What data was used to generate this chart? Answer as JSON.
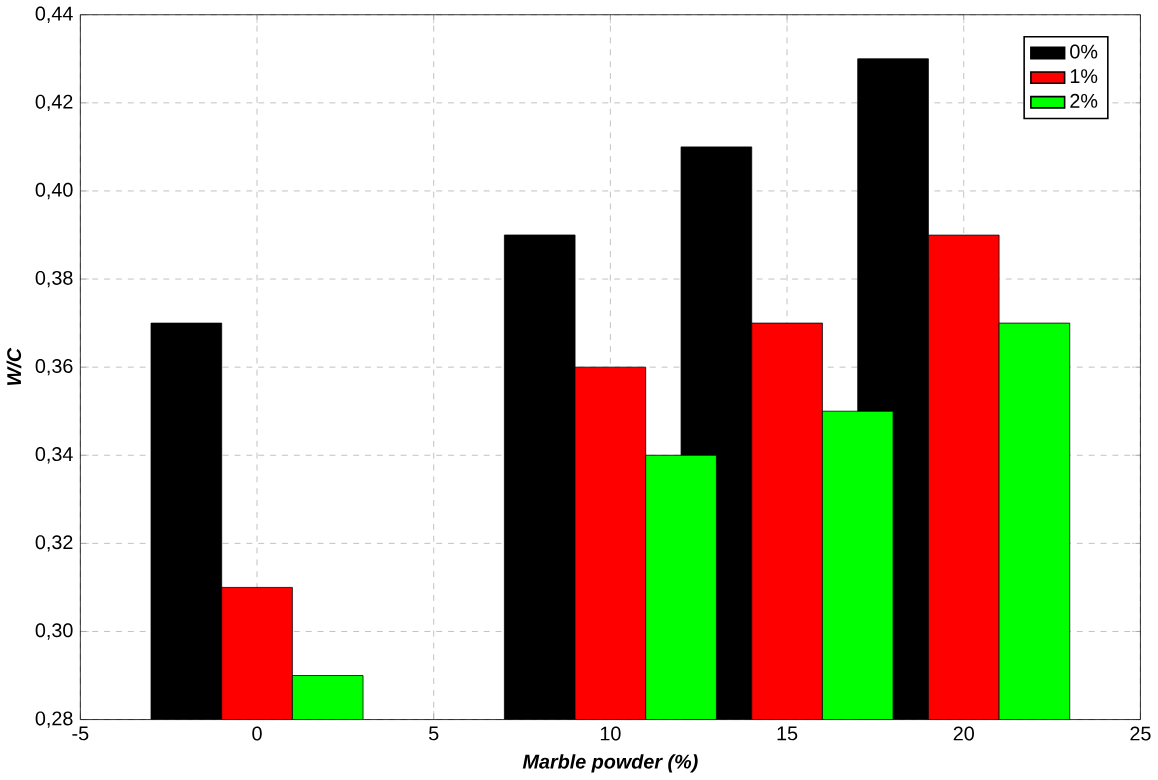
{
  "chart_data": {
    "type": "bar",
    "xlabel": "Marble powder (%)",
    "ylabel": "W/C",
    "x": [
      0,
      10,
      15,
      20
    ],
    "series": [
      {
        "name": "0%",
        "color": "#000000",
        "values": [
          0.37,
          0.39,
          0.41,
          0.43
        ]
      },
      {
        "name": "1%",
        "color": "#ff0000",
        "values": [
          0.31,
          0.36,
          0.37,
          0.39
        ]
      },
      {
        "name": "2%",
        "color": "#00ff00",
        "values": [
          0.29,
          0.34,
          0.35,
          0.37
        ]
      }
    ],
    "xlim": [
      -5,
      25
    ],
    "xticks": [
      -5,
      0,
      5,
      10,
      15,
      20,
      25
    ],
    "ylim": [
      0.28,
      0.44
    ],
    "yticks": [
      {
        "value": 0.28,
        "label": "0,28"
      },
      {
        "value": 0.3,
        "label": "0,30"
      },
      {
        "value": 0.32,
        "label": "0,32"
      },
      {
        "value": 0.34,
        "label": "0,34"
      },
      {
        "value": 0.36,
        "label": "0,36"
      },
      {
        "value": 0.38,
        "label": "0,38"
      },
      {
        "value": 0.4,
        "label": "0,40"
      },
      {
        "value": 0.42,
        "label": "0,42"
      },
      {
        "value": 0.44,
        "label": "0,44"
      }
    ],
    "grid": true,
    "legend": "top right"
  }
}
